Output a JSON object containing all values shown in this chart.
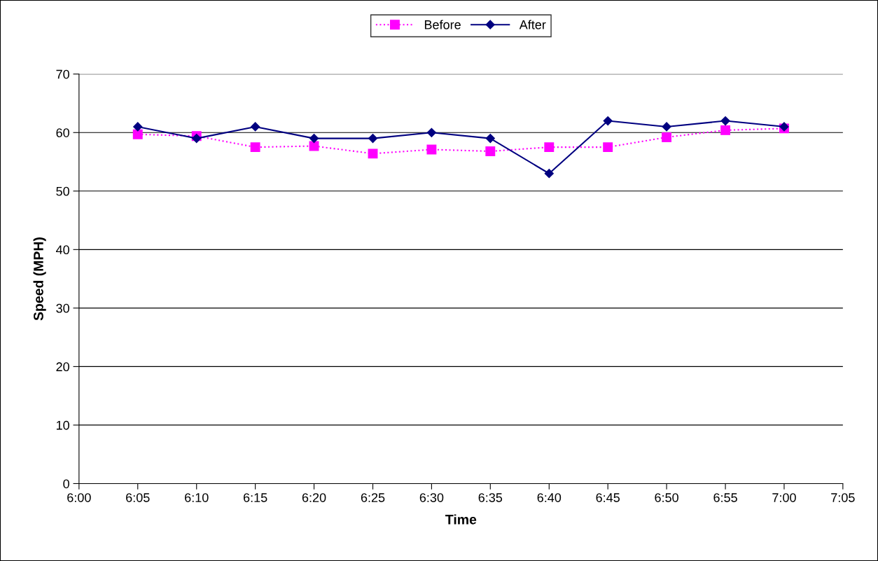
{
  "chart_data": {
    "type": "line",
    "xlabel": "Time",
    "ylabel": "Speed (MPH)",
    "x": [
      6.0833,
      6.1667,
      6.25,
      6.3333,
      6.4167,
      6.5,
      6.5833,
      6.6667,
      6.75,
      6.8333,
      6.9167,
      7.0
    ],
    "series": [
      {
        "name": "Before",
        "color": "#ff00ff",
        "marker": "square",
        "line_style": "dotted",
        "values": [
          59.7,
          59.4,
          57.5,
          57.7,
          56.4,
          57.1,
          56.8,
          57.5,
          57.5,
          59.2,
          60.4,
          60.7
        ]
      },
      {
        "name": "After",
        "color": "#000080",
        "marker": "diamond",
        "line_style": "solid",
        "values": [
          61,
          59,
          61,
          59,
          59,
          60,
          59,
          53,
          62,
          61,
          62,
          61
        ]
      }
    ],
    "xlim": [
      6.0,
      7.0833
    ],
    "xticks": [
      {
        "value": 6.0,
        "label": "6:00"
      },
      {
        "value": 6.0833,
        "label": "6:05"
      },
      {
        "value": 6.1667,
        "label": "6:10"
      },
      {
        "value": 6.25,
        "label": "6:15"
      },
      {
        "value": 6.3333,
        "label": "6:20"
      },
      {
        "value": 6.4167,
        "label": "6:25"
      },
      {
        "value": 6.5,
        "label": "6:30"
      },
      {
        "value": 6.5833,
        "label": "6:35"
      },
      {
        "value": 6.6667,
        "label": "6:40"
      },
      {
        "value": 6.75,
        "label": "6:45"
      },
      {
        "value": 6.8333,
        "label": "6:50"
      },
      {
        "value": 6.9167,
        "label": "6:55"
      },
      {
        "value": 7.0,
        "label": "7:00"
      },
      {
        "value": 7.0833,
        "label": "7:05"
      }
    ],
    "ylim": [
      0,
      70
    ],
    "yticks": [
      0,
      10,
      20,
      30,
      40,
      50,
      60,
      70
    ],
    "grid": "y",
    "legend": "top"
  }
}
